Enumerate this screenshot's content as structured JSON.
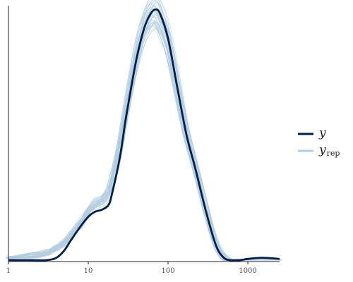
{
  "chart_data": {
    "type": "line",
    "x_scale": "log",
    "xlim": [
      1,
      2500
    ],
    "ylim": [
      0,
      1.05
    ],
    "x_ticks": [
      "1",
      "10",
      "100",
      "1000"
    ],
    "y_ticks": [],
    "grid": false,
    "legend_position": "right",
    "series": [
      {
        "name": "y",
        "color": "#011f4b",
        "x": [
          1,
          2,
          3,
          4,
          5,
          6,
          8,
          10,
          12,
          15,
          18,
          20,
          25,
          30,
          40,
          50,
          60,
          70,
          80,
          100,
          130,
          170,
          220,
          300,
          400,
          500,
          600,
          700,
          800,
          1000,
          1500,
          2500
        ],
        "values": [
          0,
          0,
          0,
          0.01,
          0.04,
          0.08,
          0.14,
          0.18,
          0.2,
          0.21,
          0.23,
          0.28,
          0.43,
          0.6,
          0.83,
          0.96,
          1.02,
          1.04,
          1.02,
          0.92,
          0.72,
          0.52,
          0.38,
          0.2,
          0.06,
          0.01,
          0,
          0,
          0,
          0.005,
          0.01,
          0.005
        ]
      },
      {
        "name": "y_rep",
        "color": "#b3cde0",
        "x": [
          1,
          2,
          3,
          4,
          5,
          6,
          8,
          10,
          12,
          15,
          18,
          20,
          25,
          30,
          40,
          50,
          60,
          70,
          80,
          100,
          130,
          170,
          220,
          300,
          400,
          500,
          600,
          700,
          800,
          1000,
          1500,
          2500
        ],
        "values": [
          0.01,
          0.02,
          0.03,
          0.05,
          0.07,
          0.1,
          0.15,
          0.2,
          0.23,
          0.25,
          0.28,
          0.33,
          0.47,
          0.62,
          0.84,
          0.96,
          1.02,
          1.03,
          1.0,
          0.91,
          0.73,
          0.53,
          0.39,
          0.21,
          0.07,
          0.015,
          0,
          0,
          0,
          0,
          0,
          0
        ]
      }
    ],
    "legend": {
      "y_label": "y",
      "yrep_main": "y",
      "yrep_sub": "rep"
    }
  }
}
